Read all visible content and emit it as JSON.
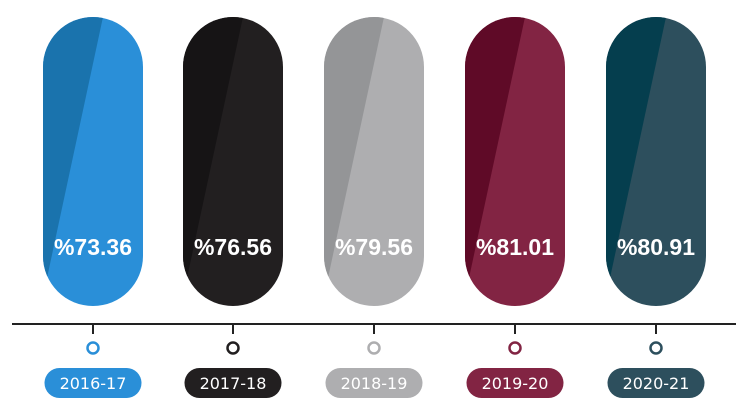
{
  "chart_data": {
    "type": "bar",
    "categories": [
      "2016-17",
      "2017-18",
      "2018-19",
      "2019-20",
      "2020-21"
    ],
    "values": [
      73.36,
      76.56,
      79.56,
      81.01,
      80.91
    ],
    "value_labels": [
      "%73.36",
      "%76.56",
      "%79.56",
      "%81.01",
      "%80.91"
    ],
    "title": "",
    "xlabel": "",
    "ylabel": "",
    "legend": "none",
    "grid": false
  },
  "colors": {
    "bars": [
      "#2a8fd8",
      "#221f20",
      "#aeaeb0",
      "#822443",
      "#2d4f5d"
    ],
    "bar_shades": [
      "#1a73ad",
      "#161415",
      "#949597",
      "#5f0a27",
      "#053e4e"
    ],
    "axis": "#222222"
  },
  "icons": {
    "marker": "ring-marker-icon"
  }
}
